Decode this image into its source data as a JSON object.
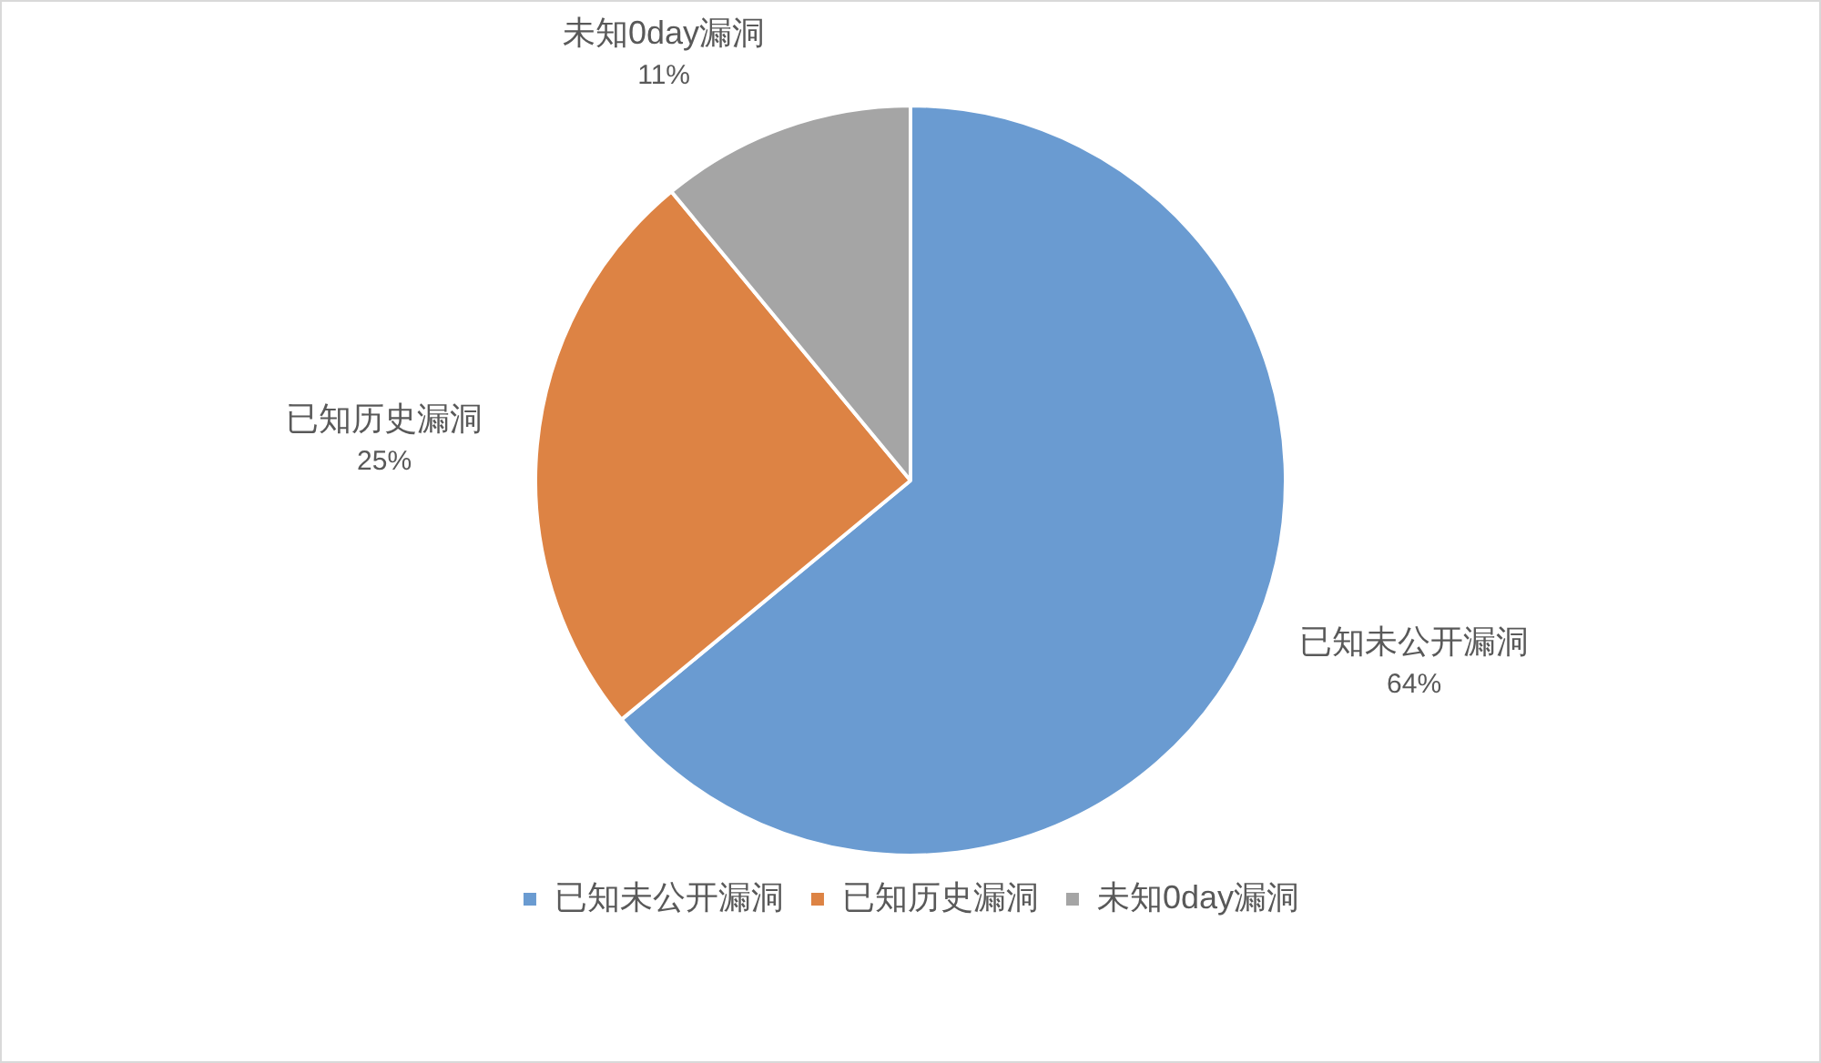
{
  "chart_data": {
    "type": "pie",
    "categories": [
      "已知未公开漏洞",
      "已知历史漏洞",
      "未知0day漏洞"
    ],
    "values": [
      64,
      25,
      11
    ],
    "colors": [
      "#6a9bd1",
      "#dd8344",
      "#a5a5a5"
    ],
    "value_labels": [
      "64%",
      "25%",
      "11%"
    ],
    "legend": "bottom"
  }
}
